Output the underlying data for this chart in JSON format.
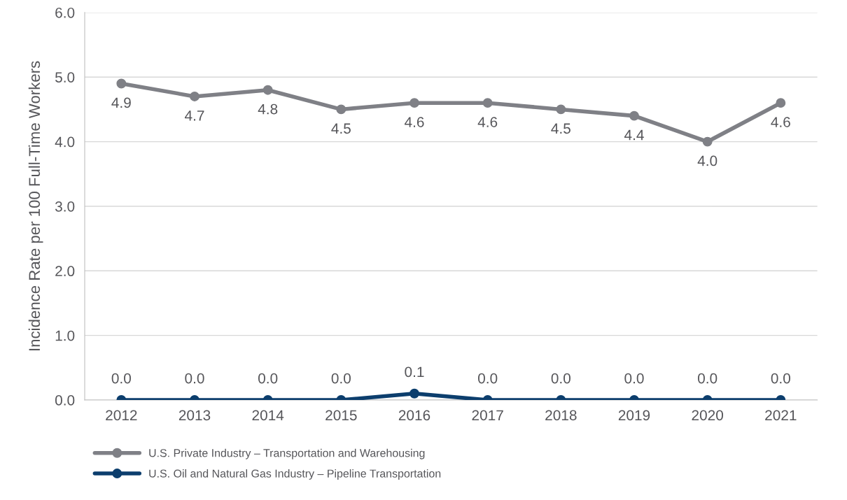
{
  "chart_data": {
    "type": "line",
    "ylabel": "Incidence Rate per 100 Full-Time Workers",
    "categories": [
      "2012",
      "2013",
      "2014",
      "2015",
      "2016",
      "2017",
      "2018",
      "2019",
      "2020",
      "2021"
    ],
    "series": [
      {
        "name": "U.S. Private Industry – Transportation and Warehousing",
        "color": "#7f8086",
        "values": [
          4.9,
          4.7,
          4.8,
          4.5,
          4.6,
          4.6,
          4.5,
          4.4,
          4.0,
          4.6
        ],
        "value_labels": [
          "4.9",
          "4.7",
          "4.8",
          "4.5",
          "4.6",
          "4.6",
          "4.5",
          "4.4",
          "4.0",
          "4.6"
        ]
      },
      {
        "name": "U.S. Oil and Natural Gas Industry – Pipeline Transportation",
        "color": "#0c3e6d",
        "values": [
          0.0,
          0.0,
          0.0,
          0.0,
          0.1,
          0.0,
          0.0,
          0.0,
          0.0,
          0.0
        ],
        "value_labels": [
          "0.0",
          "0.0",
          "0.0",
          "0.0",
          "0.1",
          "0.0",
          "0.0",
          "0.0",
          "0.0",
          "0.0"
        ]
      }
    ],
    "ylim": [
      0,
      6
    ],
    "yticks": [
      {
        "value": 0,
        "label": "0.0"
      },
      {
        "value": 1,
        "label": "1.0"
      },
      {
        "value": 2,
        "label": "2.0"
      },
      {
        "value": 3,
        "label": "3.0"
      },
      {
        "value": 4,
        "label": "4.0"
      },
      {
        "value": 5,
        "label": "5.0"
      },
      {
        "value": 6,
        "label": "6.0"
      }
    ],
    "grid": "y",
    "legend": "bottom left",
    "marker": "circle",
    "line_style": "solid"
  }
}
